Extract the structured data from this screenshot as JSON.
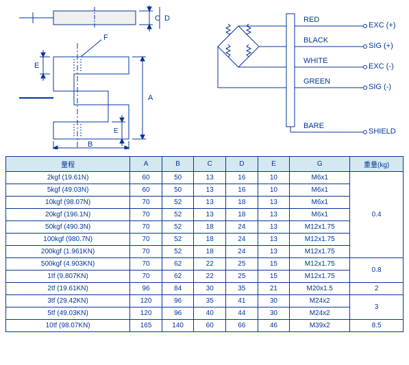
{
  "wiring": {
    "wires": [
      {
        "color": "RED",
        "signal": "EXC (+)"
      },
      {
        "color": "BLACK",
        "signal": "SIG (+)"
      },
      {
        "color": "WHITE",
        "signal": "EXC (-)"
      },
      {
        "color": "GREEN",
        "signal": "SIG (-)"
      },
      {
        "color": "BARE",
        "signal": "SHIELD"
      }
    ]
  },
  "mech_labels": {
    "A": "A",
    "B": "B",
    "C": "C",
    "D": "D",
    "E": "E",
    "F": "F"
  },
  "table": {
    "headers": {
      "range": "量程",
      "A": "A",
      "B": "B",
      "C": "C",
      "D": "D",
      "E": "E",
      "G": "G",
      "weight": "重量(kg)"
    },
    "rows": [
      {
        "range": "2kgf (19.61N)",
        "A": "60",
        "B": "50",
        "C": "13",
        "D": "16",
        "E": "10",
        "G": "M6x1"
      },
      {
        "range": "5kgf (49.03N)",
        "A": "60",
        "B": "50",
        "C": "13",
        "D": "16",
        "E": "10",
        "G": "M6x1"
      },
      {
        "range": "10kgf (98.07N)",
        "A": "70",
        "B": "52",
        "C": "13",
        "D": "18",
        "E": "13",
        "G": "M6x1"
      },
      {
        "range": "20kgf (196.1N)",
        "A": "70",
        "B": "52",
        "C": "13",
        "D": "18",
        "E": "13",
        "G": "M6x1"
      },
      {
        "range": "50kgf (490.3N)",
        "A": "70",
        "B": "52",
        "C": "18",
        "D": "24",
        "E": "13",
        "G": "M12x1.75"
      },
      {
        "range": "100kgf (980.7N)",
        "A": "70",
        "B": "52",
        "C": "18",
        "D": "24",
        "E": "13",
        "G": "M12x1.75"
      },
      {
        "range": "200kgf (1.961KN)",
        "A": "70",
        "B": "52",
        "C": "18",
        "D": "24",
        "E": "13",
        "G": "M12x1.75"
      },
      {
        "range": "500kgf (4.903KN)",
        "A": "70",
        "B": "62",
        "C": "22",
        "D": "25",
        "E": "15",
        "G": "M12x1.75"
      },
      {
        "range": "1tf (9.807KN)",
        "A": "70",
        "B": "62",
        "C": "22",
        "D": "25",
        "E": "15",
        "G": "M12x1.75"
      },
      {
        "range": "2tf (19.61KN)",
        "A": "96",
        "B": "84",
        "C": "30",
        "D": "35",
        "E": "21",
        "G": "M20x1.5"
      },
      {
        "range": "3tf (29.42KN)",
        "A": "120",
        "B": "96",
        "C": "35",
        "D": "41",
        "E": "30",
        "G": "M24x2"
      },
      {
        "range": "5tf (49.03KN)",
        "A": "120",
        "B": "96",
        "C": "40",
        "D": "44",
        "E": "30",
        "G": "M24x2"
      },
      {
        "range": "10tf (98.07KN)",
        "A": "165",
        "B": "140",
        "C": "60",
        "D": "66",
        "E": "46",
        "G": "M39x2"
      }
    ],
    "weight_groups": [
      {
        "value": "0.4",
        "span": 7
      },
      {
        "value": "0.8",
        "span": 2
      },
      {
        "value": "2",
        "span": 1
      },
      {
        "value": "3",
        "span": 2
      },
      {
        "value": "8.5",
        "span": 1
      }
    ]
  },
  "style": {
    "line_color": "#003399",
    "fill_color": "#d4e8f0"
  }
}
